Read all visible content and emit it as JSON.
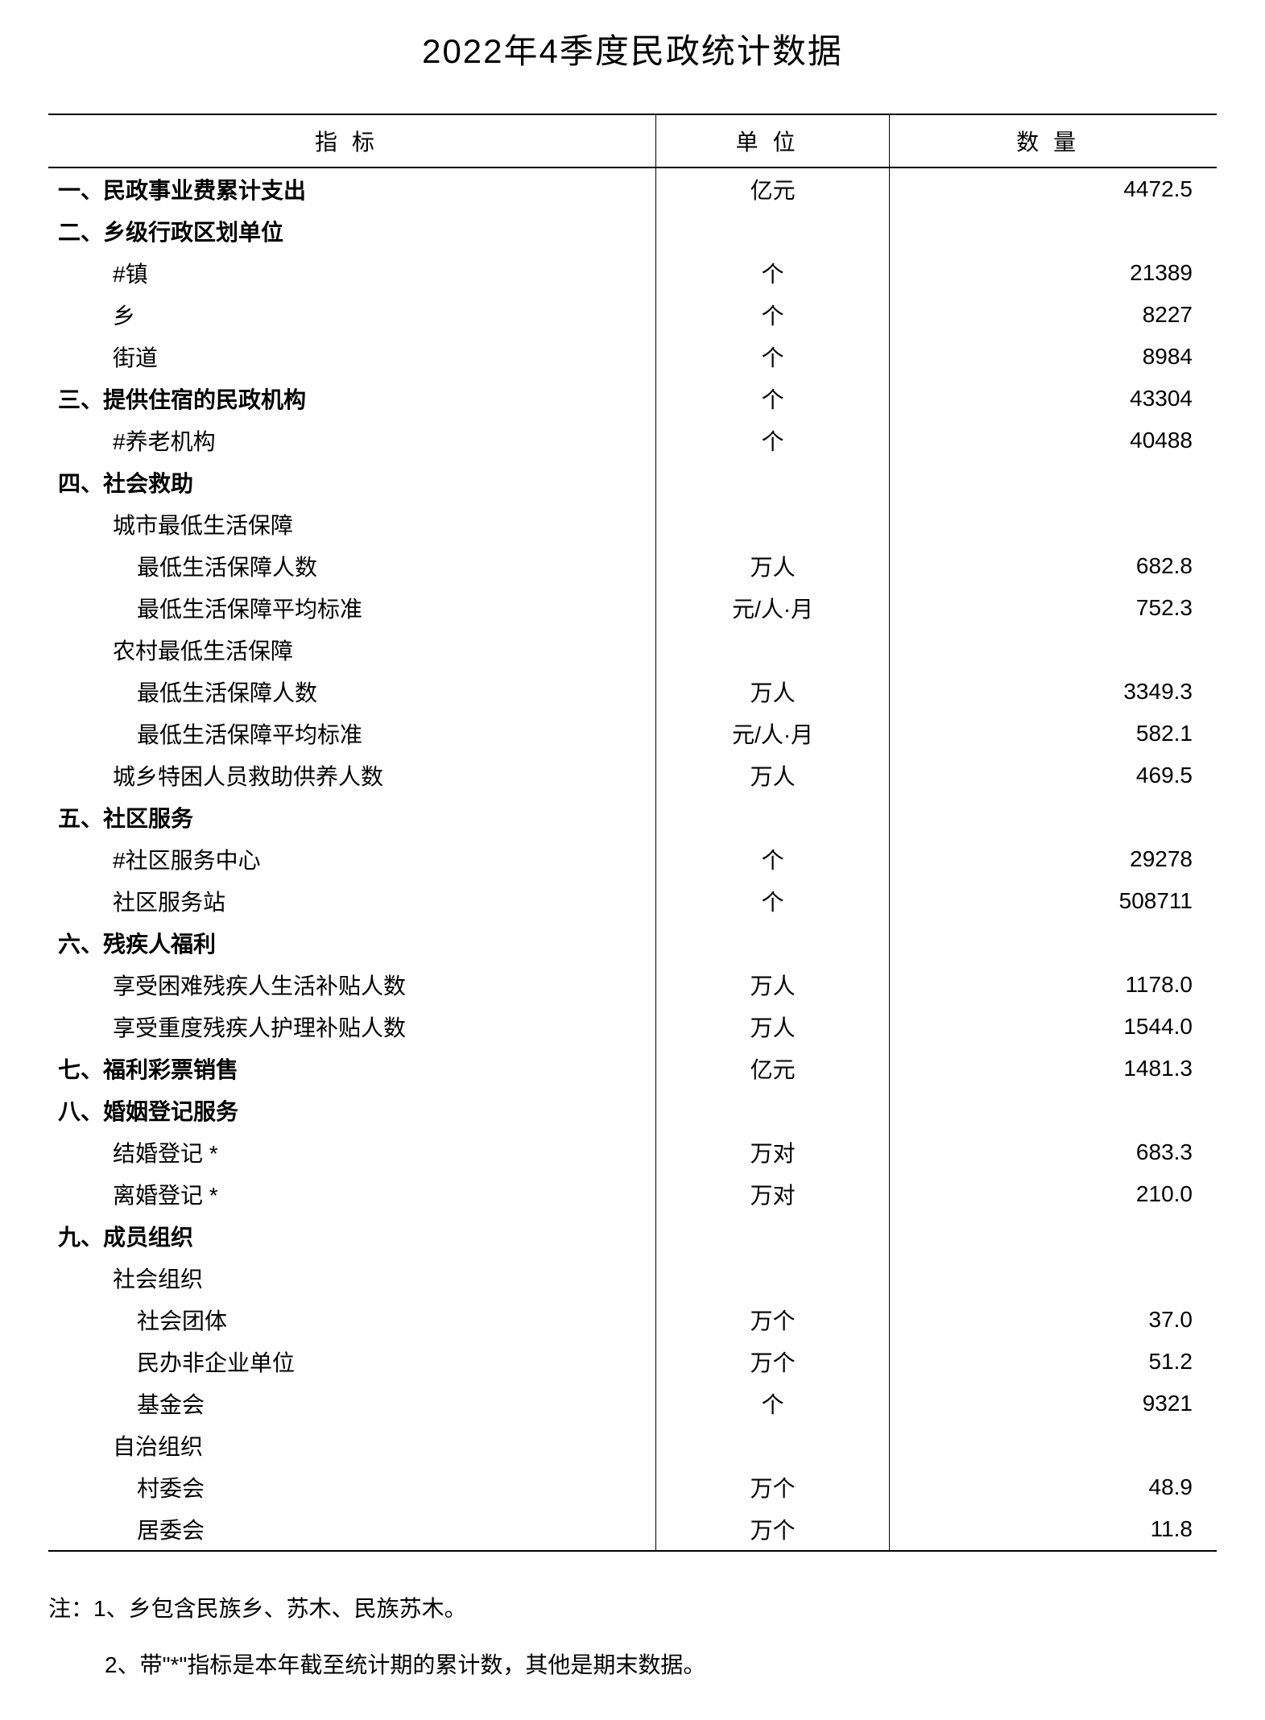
{
  "title": "2022年4季度民政统计数据",
  "columns": {
    "indicator": "指标",
    "unit": "单位",
    "value": "数量"
  },
  "rows": [
    {
      "label": "一、民政事业费累计支出",
      "unit": "亿元",
      "value": "4472.5",
      "indent": 0
    },
    {
      "label": "二、乡级行政区划单位",
      "unit": "",
      "value": "",
      "indent": 0
    },
    {
      "label": "#镇",
      "unit": "个",
      "value": "21389",
      "indent": 1
    },
    {
      "label": "乡",
      "unit": "个",
      "value": "8227",
      "indent": 1
    },
    {
      "label": "街道",
      "unit": "个",
      "value": "8984",
      "indent": 1
    },
    {
      "label": "三、提供住宿的民政机构",
      "unit": "个",
      "value": "43304",
      "indent": 0
    },
    {
      "label": "#养老机构",
      "unit": "个",
      "value": "40488",
      "indent": 1
    },
    {
      "label": "四、社会救助",
      "unit": "",
      "value": "",
      "indent": 0
    },
    {
      "label": "城市最低生活保障",
      "unit": "",
      "value": "",
      "indent": 1
    },
    {
      "label": "最低生活保障人数",
      "unit": "万人",
      "value": "682.8",
      "indent": 2
    },
    {
      "label": "最低生活保障平均标准",
      "unit": "元/人·月",
      "value": "752.3",
      "indent": 2
    },
    {
      "label": "农村最低生活保障",
      "unit": "",
      "value": "",
      "indent": 1
    },
    {
      "label": "最低生活保障人数",
      "unit": "万人",
      "value": "3349.3",
      "indent": 2
    },
    {
      "label": "最低生活保障平均标准",
      "unit": "元/人·月",
      "value": "582.1",
      "indent": 2
    },
    {
      "label": "城乡特困人员救助供养人数",
      "unit": "万人",
      "value": "469.5",
      "indent": 1
    },
    {
      "label": "五、社区服务",
      "unit": "",
      "value": "",
      "indent": 0
    },
    {
      "label": "#社区服务中心",
      "unit": "个",
      "value": "29278",
      "indent": 1
    },
    {
      "label": "社区服务站",
      "unit": "个",
      "value": "508711",
      "indent": 1
    },
    {
      "label": "六、残疾人福利",
      "unit": "",
      "value": "",
      "indent": 0
    },
    {
      "label": "享受困难残疾人生活补贴人数",
      "unit": "万人",
      "value": "1178.0",
      "indent": 1
    },
    {
      "label": "享受重度残疾人护理补贴人数",
      "unit": "万人",
      "value": "1544.0",
      "indent": 1
    },
    {
      "label": "七、福利彩票销售",
      "unit": "亿元",
      "value": "1481.3",
      "indent": 0
    },
    {
      "label": "八、婚姻登记服务",
      "unit": "",
      "value": "",
      "indent": 0
    },
    {
      "label": "结婚登记 *",
      "unit": "万对",
      "value": "683.3",
      "indent": 1
    },
    {
      "label": "离婚登记 *",
      "unit": "万对",
      "value": "210.0",
      "indent": 1
    },
    {
      "label": "九、成员组织",
      "unit": "",
      "value": "",
      "indent": 0
    },
    {
      "label": "社会组织",
      "unit": "",
      "value": "",
      "indent": 1
    },
    {
      "label": "社会团体",
      "unit": "万个",
      "value": "37.0",
      "indent": 2
    },
    {
      "label": "民办非企业单位",
      "unit": "万个",
      "value": "51.2",
      "indent": 2
    },
    {
      "label": "基金会",
      "unit": "个",
      "value": "9321",
      "indent": 2
    },
    {
      "label": "自治组织",
      "unit": "",
      "value": "",
      "indent": 1
    },
    {
      "label": "村委会",
      "unit": "万个",
      "value": "48.9",
      "indent": 2
    },
    {
      "label": "居委会",
      "unit": "万个",
      "value": "11.8",
      "indent": 2
    }
  ],
  "notes": [
    "注：1、乡包含民族乡、苏木、民族苏木。",
    "2、带\"*\"指标是本年截至统计期的累计数，其他是期末数据。"
  ]
}
